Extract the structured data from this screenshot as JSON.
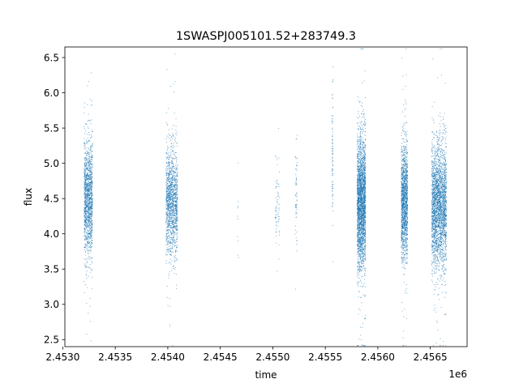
{
  "chart_data": {
    "type": "scatter",
    "title": "1SWASPJ005101.52+283749.3",
    "xlabel": "time",
    "ylabel": "flux",
    "x_offset_label": "1e6",
    "x_scale": 1000000,
    "xlim": [
      2.45302,
      2.45685
    ],
    "ylim": [
      2.4,
      6.65
    ],
    "x_ticks": [
      2.453,
      2.4535,
      2.454,
      2.4545,
      2.455,
      2.4555,
      2.456,
      2.4565
    ],
    "x_tick_labels": [
      "2.4530",
      "2.4535",
      "2.4540",
      "2.4545",
      "2.4550",
      "2.4555",
      "2.4560",
      "2.4565"
    ],
    "y_ticks": [
      2.5,
      3.0,
      3.5,
      4.0,
      4.5,
      5.0,
      5.5,
      6.0,
      6.5
    ],
    "y_tick_labels": [
      "2.5",
      "3.0",
      "3.5",
      "4.0",
      "4.5",
      "5.0",
      "5.5",
      "6.0",
      "6.5"
    ],
    "grid": false,
    "legend": "none",
    "point_color": "#1f77b4",
    "clusters": [
      {
        "x_start": 2.4532,
        "x_end": 2.45328,
        "y_center": 4.5,
        "y_spread": 0.4,
        "density": 1400
      },
      {
        "x_start": 2.45398,
        "x_end": 2.45409,
        "y_center": 4.45,
        "y_spread": 0.38,
        "density": 1400
      },
      {
        "x_start": 2.45466,
        "x_end": 2.45467,
        "y_center": 4.1,
        "y_spread": 0.4,
        "density": 10
      },
      {
        "x_start": 2.45502,
        "x_end": 2.45506,
        "y_center": 4.45,
        "y_spread": 0.35,
        "density": 70
      },
      {
        "x_start": 2.45521,
        "x_end": 2.45523,
        "y_center": 4.6,
        "y_spread": 0.4,
        "density": 60
      },
      {
        "x_start": 2.45556,
        "x_end": 2.45557,
        "y_center": 5.15,
        "y_spread": 0.45,
        "density": 90
      },
      {
        "x_start": 2.4558,
        "x_end": 2.45588,
        "y_center": 4.45,
        "y_spread": 0.45,
        "density": 2600
      },
      {
        "x_start": 2.45622,
        "x_end": 2.45628,
        "y_center": 4.45,
        "y_spread": 0.4,
        "density": 1500
      },
      {
        "x_start": 2.45651,
        "x_end": 2.45665,
        "y_center": 4.4,
        "y_spread": 0.42,
        "density": 2600
      }
    ]
  }
}
